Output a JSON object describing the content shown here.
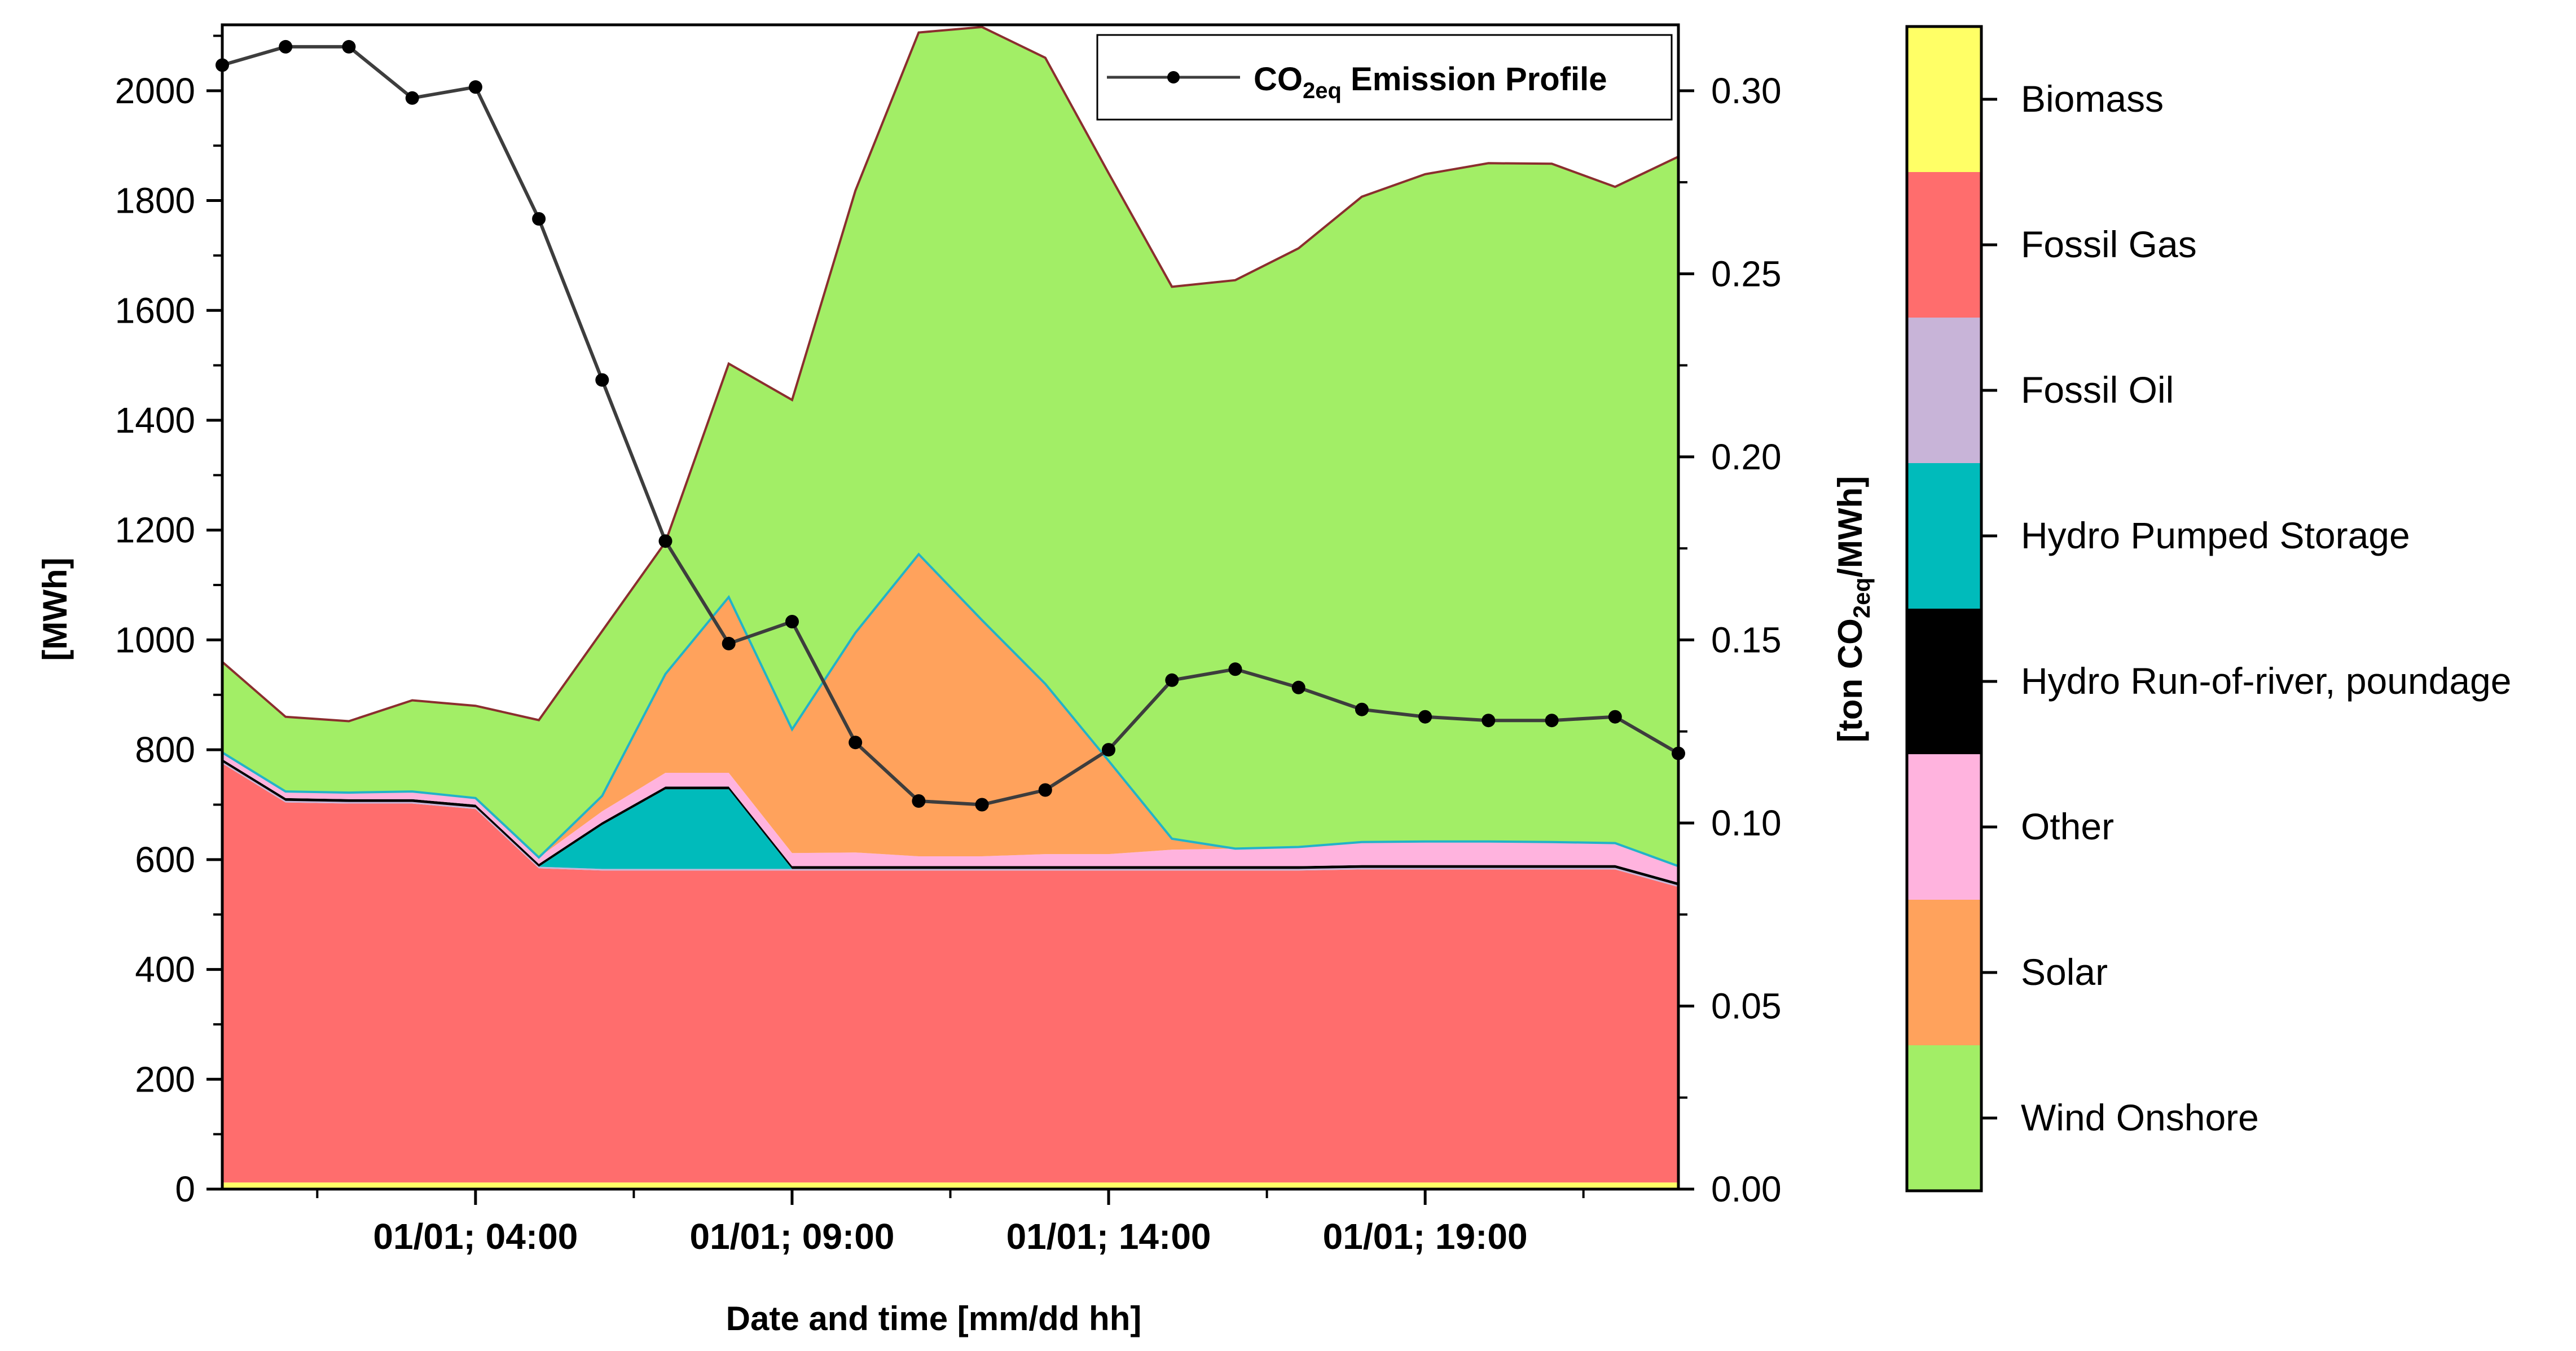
{
  "chart_data": {
    "type": "area",
    "stacked": true,
    "xlabel": "Date and time [mm/dd hh]",
    "ylabel_left": "[MWh]",
    "ylabel_right": {
      "prefix": "[ton CO",
      "sub": "2eq",
      "suffix": "/MWh]"
    },
    "ylim_left": [
      0,
      2120
    ],
    "ylim_right": [
      0,
      0.318
    ],
    "x_hours": [
      0,
      1,
      2,
      3,
      4,
      5,
      6,
      7,
      8,
      9,
      10,
      11,
      12,
      13,
      14,
      15,
      16,
      17,
      18,
      19,
      20,
      21,
      22,
      23
    ],
    "xticks": [
      {
        "hour": 4,
        "label": "01/01; 04:00"
      },
      {
        "hour": 9,
        "label": "01/01; 09:00"
      },
      {
        "hour": 14,
        "label": "01/01; 14:00"
      },
      {
        "hour": 19,
        "label": "01/01; 19:00"
      }
    ],
    "yticks_left": [
      "0",
      "200",
      "400",
      "600",
      "800",
      "1000",
      "1200",
      "1400",
      "1600",
      "1800",
      "2000"
    ],
    "yticks_left_values": [
      0,
      200,
      400,
      600,
      800,
      1000,
      1200,
      1400,
      1600,
      1800,
      2000
    ],
    "yticks_right": [
      "0.00",
      "0.05",
      "0.10",
      "0.15",
      "0.20",
      "0.25",
      "0.30"
    ],
    "yticks_right_values": [
      0,
      0.05,
      0.1,
      0.15,
      0.2,
      0.25,
      0.3
    ],
    "series": [
      {
        "name": "Biomass",
        "color": "#ffff66",
        "values": [
          12,
          12,
          12,
          12,
          12,
          12,
          12,
          12,
          12,
          12,
          12,
          12,
          12,
          12,
          12,
          12,
          12,
          12,
          12,
          12,
          12,
          12,
          12,
          12
        ]
      },
      {
        "name": "Fossil Gas",
        "color": "#ff6d6d",
        "values": [
          763,
          692,
          690,
          690,
          680,
          572,
          568,
          568,
          568,
          568,
          568,
          568,
          568,
          568,
          568,
          568,
          568,
          568,
          570,
          570,
          570,
          570,
          570,
          538
        ]
      },
      {
        "name": "Fossil Oil",
        "color": "#c8b4d8",
        "values": [
          3,
          3,
          3,
          3,
          3,
          3,
          3,
          3,
          3,
          3,
          3,
          3,
          3,
          3,
          3,
          3,
          3,
          3,
          3,
          3,
          3,
          3,
          3,
          3
        ]
      },
      {
        "name": "Hydro Pumped Storage",
        "color": "#00bbbb",
        "values": [
          0,
          0,
          0,
          0,
          0,
          0,
          80,
          145,
          145,
          0,
          0,
          0,
          0,
          0,
          0,
          0,
          0,
          0,
          0,
          0,
          0,
          0,
          0,
          0
        ]
      },
      {
        "name": "Hydro Run-of-river, poundage",
        "color": "#000000",
        "values": [
          5,
          5,
          5,
          5,
          5,
          5,
          5,
          5,
          5,
          5,
          5,
          5,
          5,
          5,
          5,
          5,
          5,
          5,
          5,
          5,
          5,
          5,
          5,
          5
        ]
      },
      {
        "name": "Other",
        "color": "#ffb3de",
        "values": [
          12,
          12,
          12,
          14,
          12,
          12,
          20,
          25,
          25,
          24,
          25,
          18,
          18,
          22,
          22,
          30,
          32,
          35,
          42,
          43,
          43,
          42,
          40,
          30
        ]
      },
      {
        "name": "Solar",
        "color": "#ffa25c",
        "values": [
          0,
          0,
          0,
          0,
          0,
          0,
          28,
          180,
          320,
          225,
          400,
          550,
          430,
          310,
          170,
          20,
          0,
          0,
          0,
          0,
          0,
          0,
          0,
          0
        ]
      },
      {
        "name": "Wind Onshore",
        "color": "#a2ee66",
        "values": [
          165,
          136,
          130,
          166,
          168,
          250,
          300,
          240,
          425,
          600,
          805,
          950,
          1080,
          1140,
          1070,
          1005,
          1035,
          1090,
          1175,
          1215,
          1235,
          1235,
          1195,
          1292
        ]
      }
    ],
    "emission_profile": {
      "name": "CO2eq Emission Profile",
      "legend_prefix": "CO",
      "legend_sub": "2eq",
      "legend_suffix": " Emission Profile",
      "values": [
        0.307,
        0.312,
        0.312,
        0.298,
        0.301,
        0.265,
        0.221,
        0.177,
        0.149,
        0.155,
        0.122,
        0.106,
        0.105,
        0.109,
        0.12,
        0.139,
        0.142,
        0.137,
        0.131,
        0.129,
        0.128,
        0.128,
        0.129,
        0.119
      ]
    },
    "legend_placement": "right, vertical color bar",
    "grid": false
  },
  "colors": {
    "edge_top": "#8b2e2e",
    "edge_hydro": "#21b3c8",
    "line": "#3d3d3d",
    "marker": "#000000"
  }
}
